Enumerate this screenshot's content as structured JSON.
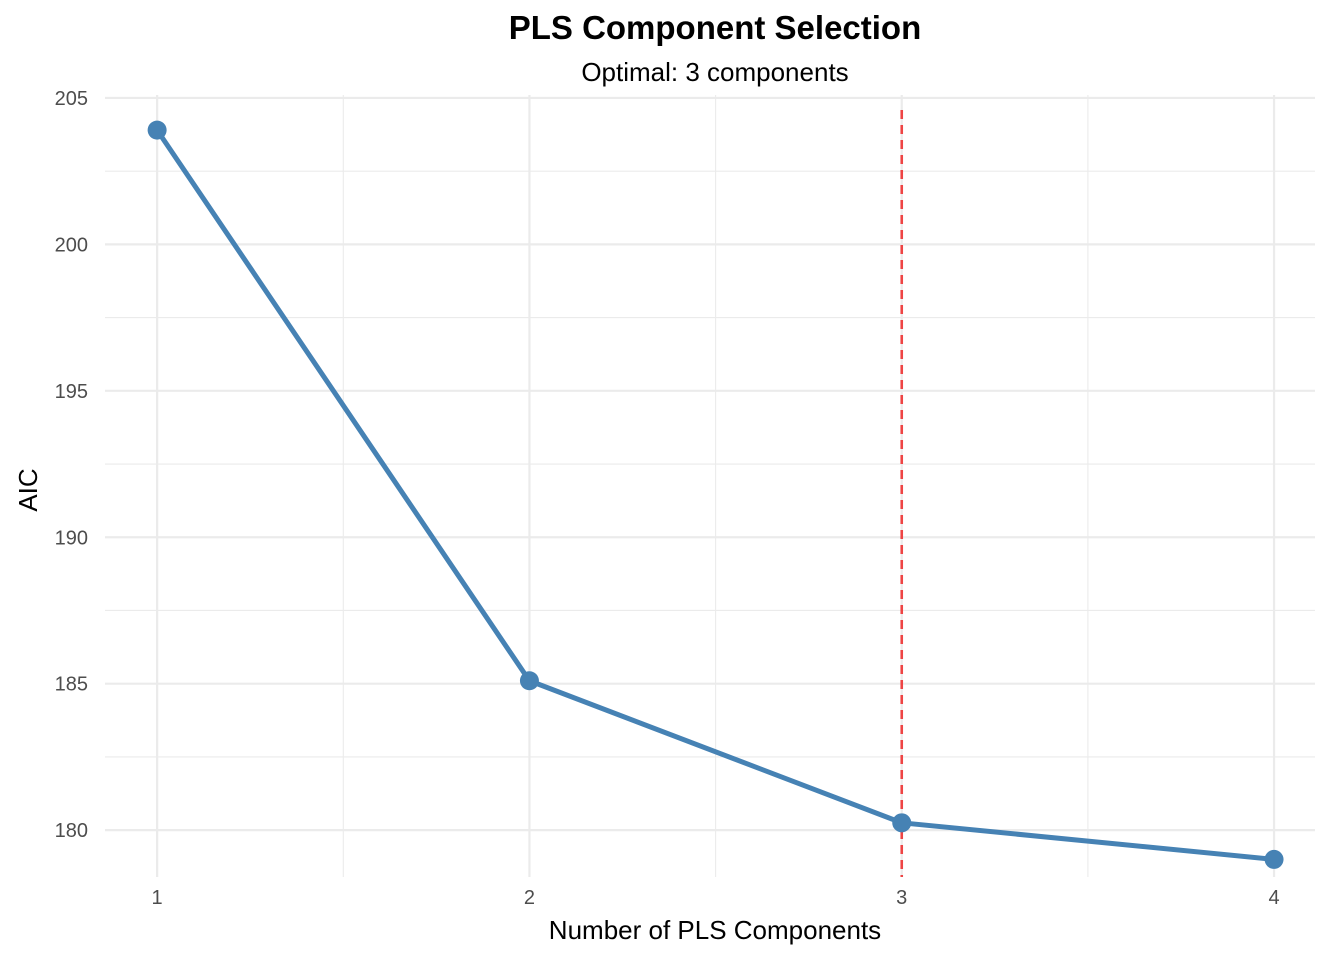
{
  "chart_data": {
    "type": "line",
    "title": "PLS Component Selection",
    "subtitle": "Optimal: 3 components",
    "xlabel": "Number of PLS Components",
    "ylabel": "AIC",
    "x": [
      1,
      2,
      3,
      4
    ],
    "series": [
      {
        "values": [
          203.9,
          185.1,
          180.25,
          179.0
        ]
      }
    ],
    "x_ticks": [
      "1",
      "2",
      "3",
      "4"
    ],
    "y_ticks": [
      "180",
      "185",
      "190",
      "195",
      "200",
      "205"
    ],
    "xlim": [
      0.86,
      4.11
    ],
    "ylim": [
      178.4,
      205.1
    ],
    "grid": true,
    "reference_line": {
      "x": 3,
      "style": "dashed",
      "color": "#ee4444"
    },
    "colors": {
      "line": "#4682b4",
      "point": "#4682b4",
      "grid": "#ebebeb"
    }
  }
}
